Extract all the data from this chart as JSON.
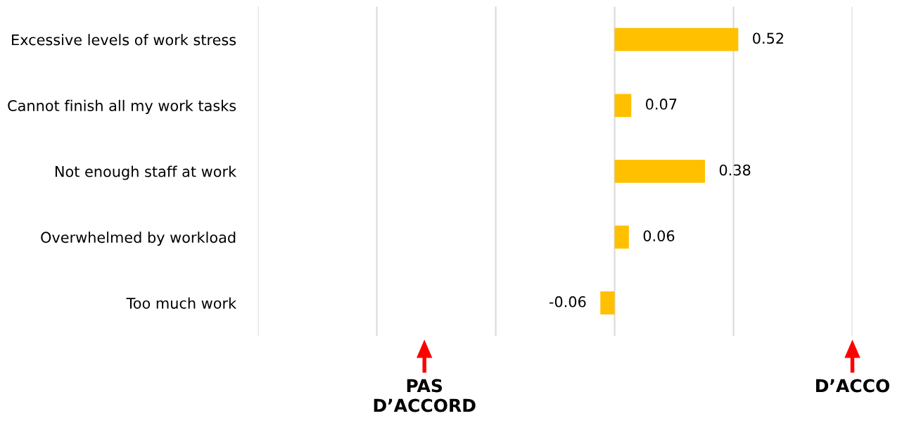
{
  "chart_data": {
    "type": "bar",
    "orientation": "horizontal",
    "categories": [
      "Excessive levels of work stress",
      "Cannot finish all my work tasks",
      "Not enough staff at work",
      "Overwhelmed by workload",
      "Too much work"
    ],
    "values": [
      0.52,
      0.07,
      0.38,
      0.06,
      -0.06
    ],
    "color": "#ffc000",
    "xlim": [
      -1.5,
      1.0
    ],
    "xticks": [
      {
        "value": -1.5,
        "label": null
      },
      {
        "value": -1.0,
        "label": null
      },
      {
        "value": -0.5,
        "label": null
      },
      {
        "value": 0,
        "label": null
      },
      {
        "value": 0.5,
        "label": null
      },
      {
        "value": 1.0,
        "label": null
      }
    ],
    "grid": "x",
    "tick_labels": "y",
    "data_labels": true,
    "annotations": [
      "PAS\nD’ACCORD",
      "D’ACCO"
    ]
  }
}
